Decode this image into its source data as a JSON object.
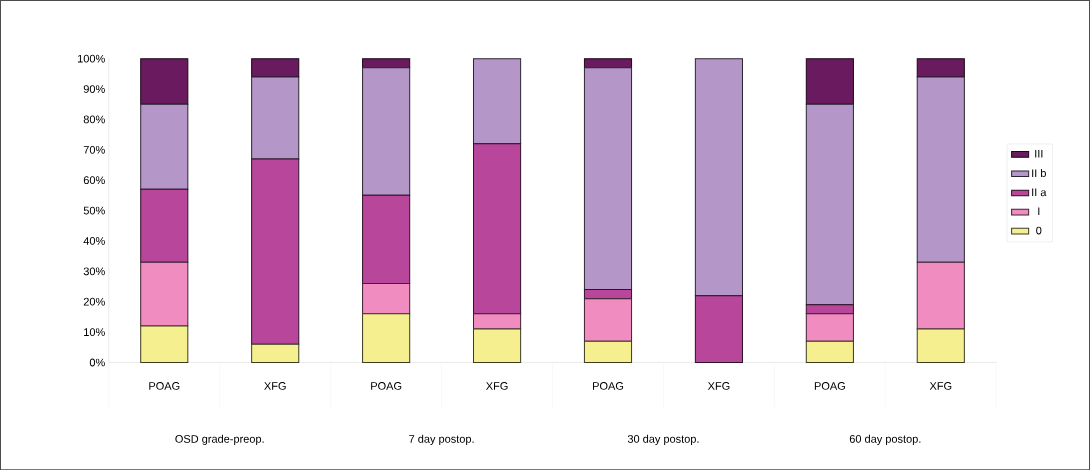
{
  "chart_data": {
    "type": "bar",
    "stacked": true,
    "categories": [
      "POAG",
      "XFG",
      "POAG",
      "XFG",
      "POAG",
      "XFG",
      "POAG",
      "XFG"
    ],
    "series": [
      {
        "name": "0",
        "color": "#f5ef8f",
        "values": [
          12,
          6,
          16,
          11,
          7,
          0,
          7,
          11
        ]
      },
      {
        "name": "I",
        "color": "#f08cbf",
        "values": [
          21,
          0,
          10,
          5,
          14,
          0,
          9,
          22
        ]
      },
      {
        "name": "II a",
        "color": "#b8479b",
        "values": [
          24,
          61,
          29,
          56,
          3,
          22,
          3,
          0
        ]
      },
      {
        "name": "II b",
        "color": "#b497c8",
        "values": [
          28,
          27,
          42,
          28,
          73,
          78,
          66,
          61
        ]
      },
      {
        "name": "III",
        "color": "#6a1a5e",
        "values": [
          15,
          6,
          3,
          0,
          3,
          0,
          15,
          6
        ]
      }
    ],
    "ylim": [
      0,
      100
    ],
    "yticks": [
      {
        "value": 0,
        "label": "0%"
      },
      {
        "value": 10,
        "label": "10%"
      },
      {
        "value": 20,
        "label": "20%"
      },
      {
        "value": 30,
        "label": "30%"
      },
      {
        "value": 40,
        "label": "40%"
      },
      {
        "value": 50,
        "label": "50%"
      },
      {
        "value": 60,
        "label": "60%"
      },
      {
        "value": 70,
        "label": "70%"
      },
      {
        "value": 80,
        "label": "80%"
      },
      {
        "value": 90,
        "label": "90%"
      },
      {
        "value": 100,
        "label": "100%"
      }
    ],
    "annotations": [
      "OSD grade-preop.",
      "7 day postop.",
      "30 day postop.",
      "60 day postop."
    ],
    "legend": "right"
  }
}
